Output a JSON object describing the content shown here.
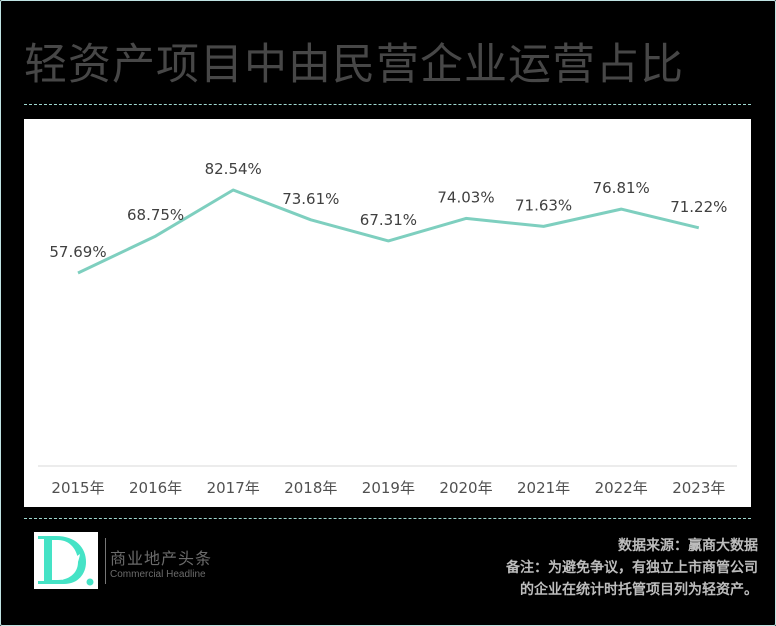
{
  "title": "轻资产项目中由民营企业运营占比",
  "chart_data": {
    "type": "line",
    "title": "轻资产项目中由民营企业运营占比",
    "categories": [
      "2015年",
      "2016年",
      "2017年",
      "2018年",
      "2019年",
      "2020年",
      "2021年",
      "2022年",
      "2023年"
    ],
    "series": [
      {
        "name": "民营企业运营占比",
        "values": [
          57.69,
          68.75,
          82.54,
          73.61,
          67.31,
          74.03,
          71.63,
          76.81,
          71.22
        ],
        "labels": [
          "57.69%",
          "68.75%",
          "82.54%",
          "73.61%",
          "67.31%",
          "74.03%",
          "71.63%",
          "76.81%",
          "71.22%"
        ],
        "color": "#7ecfbf"
      }
    ],
    "xlabel": "",
    "ylabel": "",
    "unit": "%",
    "grid": false,
    "legend": "none"
  },
  "footer": {
    "brand_cn": "商业地产头条",
    "brand_en": "Commercial Headline",
    "logo_letter": "D",
    "source": "数据来源：赢商大数据",
    "note_line1": "备注：为避免争议，有独立上市商管公司",
    "note_line2": "的企业在统计时托管项目列为轻资产。"
  },
  "colors": {
    "background": "#000000",
    "line": "#7ecfbf",
    "logo": "#45e3c6",
    "title": "#474747",
    "label": "#404040"
  }
}
